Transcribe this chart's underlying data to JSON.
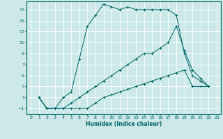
{
  "xlabel": "Humidex (Indice chaleur)",
  "bg_color": "#cce8e8",
  "grid_color": "#ffffff",
  "line_color": "#006666",
  "xlim": [
    -0.5,
    23.5
  ],
  "ylim": [
    -2,
    18.5
  ],
  "xticks": [
    0,
    1,
    2,
    3,
    4,
    5,
    6,
    7,
    8,
    9,
    10,
    11,
    12,
    13,
    14,
    15,
    16,
    17,
    18,
    19,
    20,
    21,
    22,
    23
  ],
  "yticks": [
    -1,
    1,
    3,
    5,
    7,
    9,
    11,
    13,
    15,
    17
  ],
  "series": [
    {
      "x": [
        1,
        2,
        3,
        4,
        5,
        6,
        7,
        8,
        9,
        10,
        11,
        12,
        13,
        14,
        15,
        16,
        17,
        18,
        19,
        20,
        21,
        22
      ],
      "y": [
        1,
        -1,
        -1,
        1,
        2,
        8,
        14,
        16,
        18,
        17.5,
        17,
        17.5,
        17,
        17,
        17,
        17,
        17,
        16,
        9,
        5,
        4,
        3
      ]
    },
    {
      "x": [
        1,
        2,
        3,
        4,
        5,
        6,
        7,
        8,
        9,
        10,
        11,
        12,
        13,
        14,
        15,
        16,
        17,
        18,
        19,
        20,
        21,
        22
      ],
      "y": [
        1,
        -1,
        -1,
        -1,
        0,
        1,
        2,
        3,
        4,
        5,
        6,
        7,
        8,
        9,
        9,
        10,
        11,
        14,
        9.5,
        6,
        4.5,
        3
      ]
    },
    {
      "x": [
        1,
        2,
        3,
        4,
        5,
        6,
        7,
        8,
        9,
        10,
        11,
        12,
        13,
        14,
        15,
        16,
        17,
        18,
        19,
        20,
        21,
        22
      ],
      "y": [
        1,
        -1,
        -1,
        -1,
        -1,
        -1,
        -1,
        0,
        1,
        1.5,
        2,
        2.5,
        3,
        3.5,
        4,
        4.5,
        5,
        5.5,
        6,
        3,
        3,
        3
      ]
    }
  ]
}
